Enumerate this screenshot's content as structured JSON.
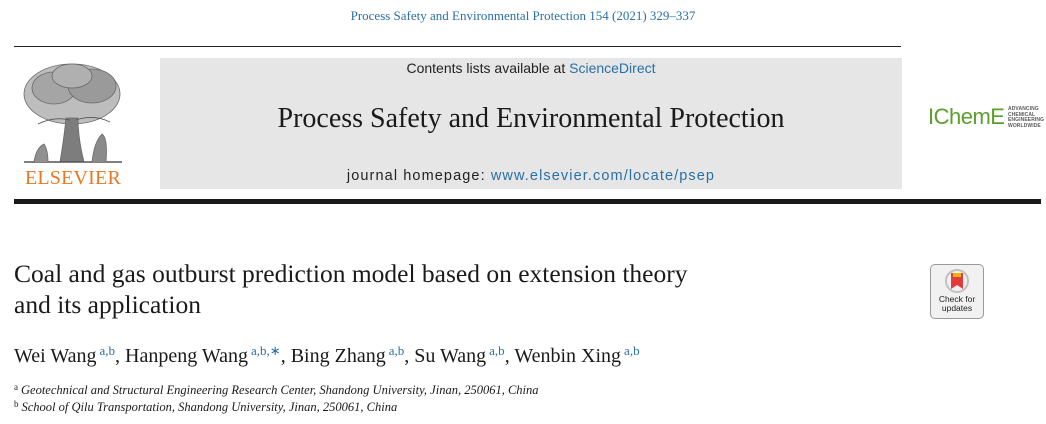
{
  "header": {
    "citation": "Process Safety and Environmental Protection 154 (2021) 329–337",
    "contents_prefix": "Contents lists available at ",
    "contents_link": "ScienceDirect",
    "journal_title": "Process Safety and Environmental Protection",
    "homepage_prefix": "journal homepage: ",
    "homepage_url": "www.elsevier.com/locate/psep"
  },
  "publisher": {
    "logo_text": "ELSEVIER",
    "logo_icon": "tree-engraving-icon",
    "brand_color": "#e87722"
  },
  "society": {
    "logo_text": "IChemE",
    "tagline": [
      "ADVANCING",
      "CHEMICAL",
      "ENGINEERING",
      "WORLDWIDE"
    ],
    "brand_color": "#5c9e2e"
  },
  "article": {
    "title_line1": "Coal and gas outburst prediction model based on extension theory",
    "title_line2": "and its application",
    "authors": [
      {
        "name": "Wei Wang",
        "sup": "a,b"
      },
      {
        "name": "Hanpeng Wang",
        "sup": "a,b,∗"
      },
      {
        "name": "Bing Zhang",
        "sup": "a,b"
      },
      {
        "name": "Su Wang",
        "sup": "a,b"
      },
      {
        "name": "Wenbin Xing",
        "sup": "a,b"
      }
    ],
    "affiliations": [
      {
        "mark": "a",
        "text": "Geotechnical and Structural Engineering Research Center, Shandong University, Jinan, 250061, China"
      },
      {
        "mark": "b",
        "text": "School of Qilu Transportation, Shandong University, Jinan, 250061, China"
      }
    ]
  },
  "check_updates": {
    "line1": "Check for",
    "line2": "updates"
  },
  "colors": {
    "link": "#2a6fa5",
    "band": "#e6e6e6"
  }
}
